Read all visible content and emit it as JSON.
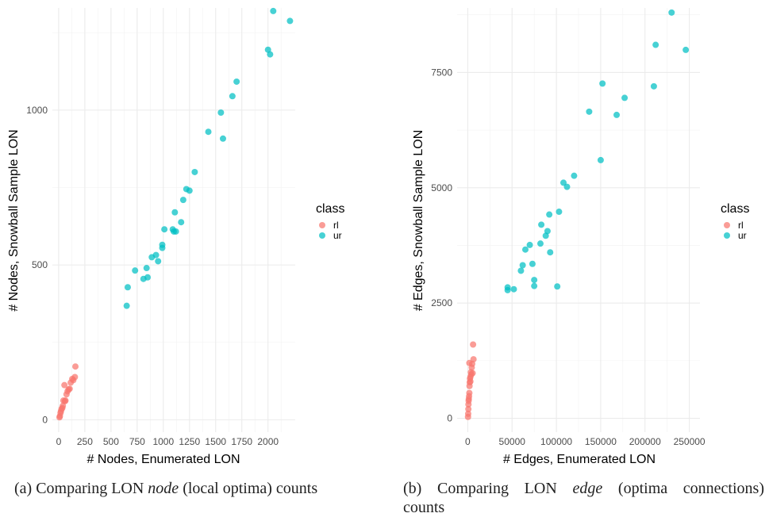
{
  "chart_data": [
    {
      "type": "scatter",
      "xlabel": "# Nodes, Enumerated LON",
      "ylabel": "# Nodes, Snowball Sample LON",
      "xlim": [
        -60,
        2260
      ],
      "ylim": [
        -40,
        1330
      ],
      "xticks": [
        "0",
        "250",
        "500",
        "750",
        "1000",
        "1250",
        "1500",
        "1750",
        "2000"
      ],
      "xtick_values": [
        0,
        250,
        500,
        750,
        1000,
        1250,
        1500,
        1750,
        2000
      ],
      "yticks": [
        "0",
        "500",
        "1000"
      ],
      "ytick_values": [
        0,
        500,
        1000
      ],
      "grid": true,
      "legend": {
        "title": "class",
        "placement": "right"
      },
      "series": [
        {
          "name": "rl",
          "color": "#F8766D",
          "points": [
            [
              8,
              8
            ],
            [
              12,
              12
            ],
            [
              18,
              22
            ],
            [
              22,
              28
            ],
            [
              28,
              35
            ],
            [
              35,
              38
            ],
            [
              40,
              45
            ],
            [
              45,
              62
            ],
            [
              55,
              112
            ],
            [
              60,
              60
            ],
            [
              65,
              62
            ],
            [
              75,
              82
            ],
            [
              85,
              92
            ],
            [
              95,
              98
            ],
            [
              105,
              100
            ],
            [
              115,
              120
            ],
            [
              130,
              132
            ],
            [
              140,
              128
            ],
            [
              155,
              138
            ],
            [
              160,
              172
            ]
          ]
        },
        {
          "name": "ur",
          "color": "#00BFC4",
          "points": [
            [
              650,
              368
            ],
            [
              660,
              428
            ],
            [
              730,
              482
            ],
            [
              810,
              455
            ],
            [
              840,
              490
            ],
            [
              850,
              460
            ],
            [
              890,
              525
            ],
            [
              930,
              532
            ],
            [
              950,
              512
            ],
            [
              990,
              565
            ],
            [
              990,
              555
            ],
            [
              1010,
              615
            ],
            [
              1090,
              615
            ],
            [
              1100,
              608
            ],
            [
              1110,
              670
            ],
            [
              1120,
              608
            ],
            [
              1170,
              638
            ],
            [
              1190,
              710
            ],
            [
              1220,
              745
            ],
            [
              1250,
              740
            ],
            [
              1300,
              800
            ],
            [
              1430,
              930
            ],
            [
              1550,
              992
            ],
            [
              1570,
              908
            ],
            [
              1660,
              1045
            ],
            [
              1700,
              1092
            ],
            [
              2000,
              1195
            ],
            [
              2020,
              1180
            ],
            [
              2050,
              1320
            ],
            [
              2210,
              1288
            ]
          ]
        }
      ]
    },
    {
      "type": "scatter",
      "xlabel": "# Edges, Enumerated LON",
      "ylabel": "# Edges, Snowball Sample LON",
      "xlim": [
        -12000,
        262000
      ],
      "ylim": [
        -300,
        8900
      ],
      "xticks": [
        "0",
        "50000",
        "100000",
        "150000",
        "200000",
        "250000"
      ],
      "xtick_values": [
        0,
        50000,
        100000,
        150000,
        200000,
        250000
      ],
      "yticks": [
        "0",
        "2500",
        "5000",
        "7500"
      ],
      "ytick_values": [
        0,
        2500,
        5000,
        7500
      ],
      "grid": true,
      "legend": {
        "title": "class",
        "placement": "right"
      },
      "series": [
        {
          "name": "rl",
          "color": "#F8766D",
          "points": [
            [
              300,
              30
            ],
            [
              500,
              100
            ],
            [
              700,
              200
            ],
            [
              800,
              300
            ],
            [
              1000,
              380
            ],
            [
              1200,
              420
            ],
            [
              1500,
              480
            ],
            [
              1800,
              550
            ],
            [
              2000,
              700
            ],
            [
              2200,
              780
            ],
            [
              2500,
              860
            ],
            [
              3000,
              900
            ],
            [
              3500,
              1000
            ],
            [
              4000,
              950
            ],
            [
              4500,
              1100
            ],
            [
              5000,
              1180
            ],
            [
              5500,
              980
            ],
            [
              6000,
              1600
            ],
            [
              6500,
              1280
            ],
            [
              1800,
              1200
            ],
            [
              3000,
              800
            ]
          ]
        },
        {
          "name": "ur",
          "color": "#00BFC4",
          "points": [
            [
              45000,
              2780
            ],
            [
              45000,
              2840
            ],
            [
              52000,
              2800
            ],
            [
              60000,
              3200
            ],
            [
              62000,
              3320
            ],
            [
              65000,
              3660
            ],
            [
              70000,
              3760
            ],
            [
              73000,
              3350
            ],
            [
              75000,
              2870
            ],
            [
              75000,
              3000
            ],
            [
              82000,
              3790
            ],
            [
              83000,
              4200
            ],
            [
              88000,
              3960
            ],
            [
              90000,
              4060
            ],
            [
              92000,
              4420
            ],
            [
              93000,
              3600
            ],
            [
              101000,
              2860
            ],
            [
              103000,
              4480
            ],
            [
              108000,
              5110
            ],
            [
              112000,
              5020
            ],
            [
              120000,
              5260
            ],
            [
              137000,
              6650
            ],
            [
              150000,
              5600
            ],
            [
              152000,
              7260
            ],
            [
              168000,
              6580
            ],
            [
              177000,
              6950
            ],
            [
              210000,
              7200
            ],
            [
              212000,
              8100
            ],
            [
              230000,
              8800
            ],
            [
              246000,
              7990
            ]
          ]
        }
      ]
    }
  ],
  "captions": {
    "a_prefix": "(a) Comparing LON ",
    "a_italic": "node",
    "a_suffix": " (local optima) counts",
    "b_line1_prefix": "(b)  Comparing  LON  ",
    "b_italic": "edge",
    "b_line1_suffix": "  (optima  connections)",
    "b_line2": "counts"
  }
}
